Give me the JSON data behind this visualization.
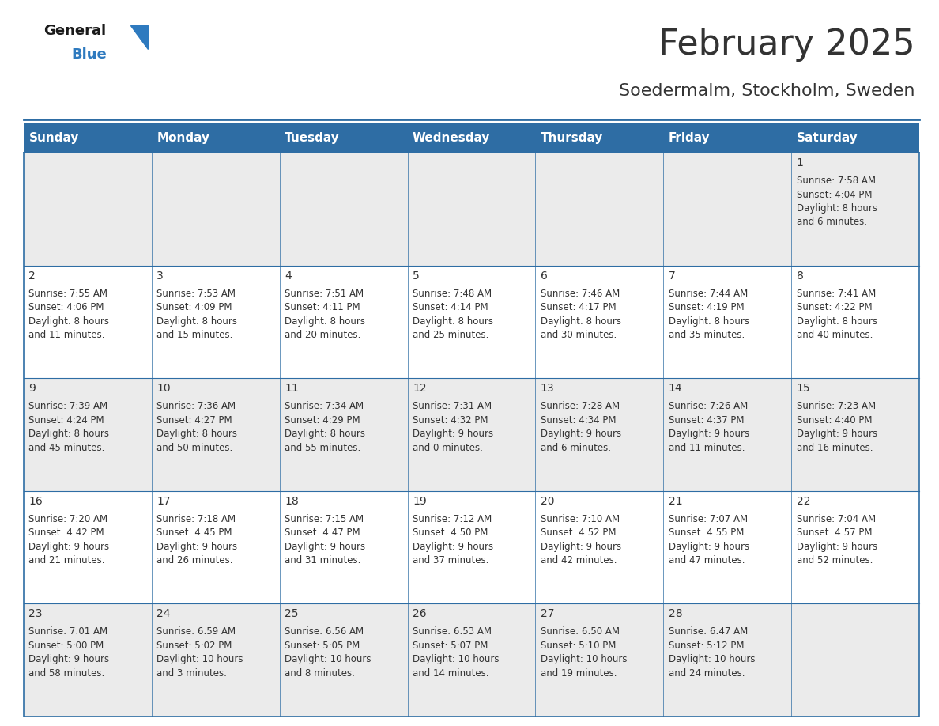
{
  "title": "February 2025",
  "subtitle": "Soedermalm, Stockholm, Sweden",
  "header_bg": "#2E6DA4",
  "header_text_color": "#FFFFFF",
  "day_names": [
    "Sunday",
    "Monday",
    "Tuesday",
    "Wednesday",
    "Thursday",
    "Friday",
    "Saturday"
  ],
  "title_fontsize": 32,
  "subtitle_fontsize": 16,
  "header_fontsize": 11,
  "cell_fontsize": 8.5,
  "day_num_fontsize": 10,
  "bg_color": "#FFFFFF",
  "cell_bg_row0": "#EBEBEB",
  "cell_bg_row1": "#FFFFFF",
  "cell_bg_row2": "#EBEBEB",
  "cell_bg_row3": "#FFFFFF",
  "cell_bg_row4": "#EBEBEB",
  "border_color": "#2E6DA4",
  "text_color": "#333333",
  "logo_color1": "#1A1A1A",
  "logo_color2": "#2E7ABF",
  "calendar": [
    [
      null,
      null,
      null,
      null,
      null,
      null,
      {
        "day": 1,
        "sunrise": "7:58 AM",
        "sunset": "4:04 PM",
        "daylight": "8 hours",
        "daylight2": "and 6 minutes."
      }
    ],
    [
      {
        "day": 2,
        "sunrise": "7:55 AM",
        "sunset": "4:06 PM",
        "daylight": "8 hours",
        "daylight2": "and 11 minutes."
      },
      {
        "day": 3,
        "sunrise": "7:53 AM",
        "sunset": "4:09 PM",
        "daylight": "8 hours",
        "daylight2": "and 15 minutes."
      },
      {
        "day": 4,
        "sunrise": "7:51 AM",
        "sunset": "4:11 PM",
        "daylight": "8 hours",
        "daylight2": "and 20 minutes."
      },
      {
        "day": 5,
        "sunrise": "7:48 AM",
        "sunset": "4:14 PM",
        "daylight": "8 hours",
        "daylight2": "and 25 minutes."
      },
      {
        "day": 6,
        "sunrise": "7:46 AM",
        "sunset": "4:17 PM",
        "daylight": "8 hours",
        "daylight2": "and 30 minutes."
      },
      {
        "day": 7,
        "sunrise": "7:44 AM",
        "sunset": "4:19 PM",
        "daylight": "8 hours",
        "daylight2": "and 35 minutes."
      },
      {
        "day": 8,
        "sunrise": "7:41 AM",
        "sunset": "4:22 PM",
        "daylight": "8 hours",
        "daylight2": "and 40 minutes."
      }
    ],
    [
      {
        "day": 9,
        "sunrise": "7:39 AM",
        "sunset": "4:24 PM",
        "daylight": "8 hours",
        "daylight2": "and 45 minutes."
      },
      {
        "day": 10,
        "sunrise": "7:36 AM",
        "sunset": "4:27 PM",
        "daylight": "8 hours",
        "daylight2": "and 50 minutes."
      },
      {
        "day": 11,
        "sunrise": "7:34 AM",
        "sunset": "4:29 PM",
        "daylight": "8 hours",
        "daylight2": "and 55 minutes."
      },
      {
        "day": 12,
        "sunrise": "7:31 AM",
        "sunset": "4:32 PM",
        "daylight": "9 hours",
        "daylight2": "and 0 minutes."
      },
      {
        "day": 13,
        "sunrise": "7:28 AM",
        "sunset": "4:34 PM",
        "daylight": "9 hours",
        "daylight2": "and 6 minutes."
      },
      {
        "day": 14,
        "sunrise": "7:26 AM",
        "sunset": "4:37 PM",
        "daylight": "9 hours",
        "daylight2": "and 11 minutes."
      },
      {
        "day": 15,
        "sunrise": "7:23 AM",
        "sunset": "4:40 PM",
        "daylight": "9 hours",
        "daylight2": "and 16 minutes."
      }
    ],
    [
      {
        "day": 16,
        "sunrise": "7:20 AM",
        "sunset": "4:42 PM",
        "daylight": "9 hours",
        "daylight2": "and 21 minutes."
      },
      {
        "day": 17,
        "sunrise": "7:18 AM",
        "sunset": "4:45 PM",
        "daylight": "9 hours",
        "daylight2": "and 26 minutes."
      },
      {
        "day": 18,
        "sunrise": "7:15 AM",
        "sunset": "4:47 PM",
        "daylight": "9 hours",
        "daylight2": "and 31 minutes."
      },
      {
        "day": 19,
        "sunrise": "7:12 AM",
        "sunset": "4:50 PM",
        "daylight": "9 hours",
        "daylight2": "and 37 minutes."
      },
      {
        "day": 20,
        "sunrise": "7:10 AM",
        "sunset": "4:52 PM",
        "daylight": "9 hours",
        "daylight2": "and 42 minutes."
      },
      {
        "day": 21,
        "sunrise": "7:07 AM",
        "sunset": "4:55 PM",
        "daylight": "9 hours",
        "daylight2": "and 47 minutes."
      },
      {
        "day": 22,
        "sunrise": "7:04 AM",
        "sunset": "4:57 PM",
        "daylight": "9 hours",
        "daylight2": "and 52 minutes."
      }
    ],
    [
      {
        "day": 23,
        "sunrise": "7:01 AM",
        "sunset": "5:00 PM",
        "daylight": "9 hours",
        "daylight2": "and 58 minutes."
      },
      {
        "day": 24,
        "sunrise": "6:59 AM",
        "sunset": "5:02 PM",
        "daylight": "10 hours",
        "daylight2": "and 3 minutes."
      },
      {
        "day": 25,
        "sunrise": "6:56 AM",
        "sunset": "5:05 PM",
        "daylight": "10 hours",
        "daylight2": "and 8 minutes."
      },
      {
        "day": 26,
        "sunrise": "6:53 AM",
        "sunset": "5:07 PM",
        "daylight": "10 hours",
        "daylight2": "and 14 minutes."
      },
      {
        "day": 27,
        "sunrise": "6:50 AM",
        "sunset": "5:10 PM",
        "daylight": "10 hours",
        "daylight2": "and 19 minutes."
      },
      {
        "day": 28,
        "sunrise": "6:47 AM",
        "sunset": "5:12 PM",
        "daylight": "10 hours",
        "daylight2": "and 24 minutes."
      },
      null
    ]
  ],
  "row_bg_colors": [
    "#EBEBEB",
    "#FFFFFF",
    "#EBEBEB",
    "#FFFFFF",
    "#EBEBEB"
  ]
}
